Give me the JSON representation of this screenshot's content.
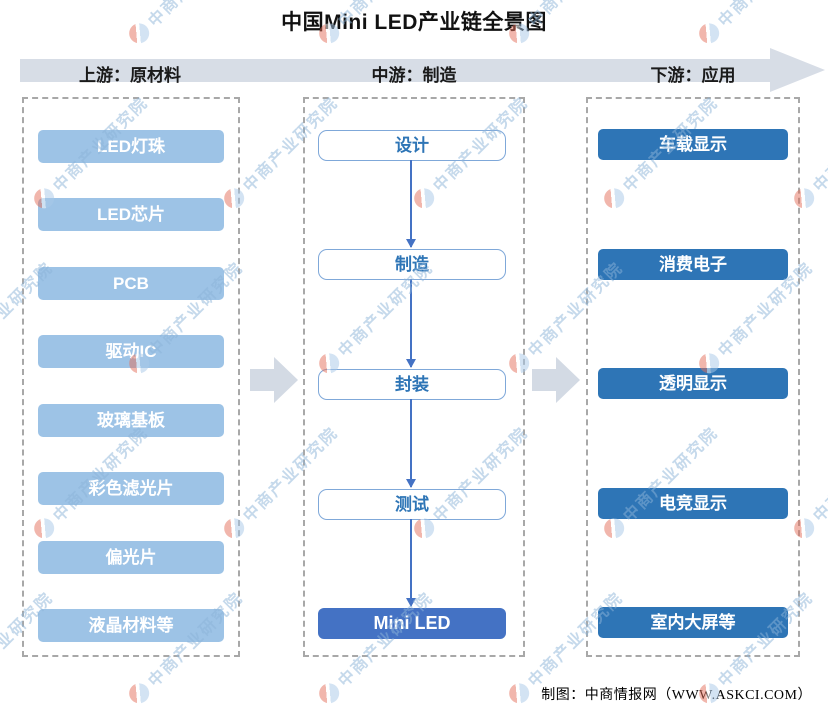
{
  "title": "中国Mini LED产业链全景图",
  "watermark": {
    "text": "中商产业研究院"
  },
  "stage_header": {
    "upstream": "上游：原材料",
    "midstream": "中游：制造",
    "downstream": "下游：应用"
  },
  "upstream": {
    "items": [
      "LED灯珠",
      "LED芯片",
      "PCB",
      "驱动IC",
      "玻璃基板",
      "彩色滤光片",
      "偏光片",
      "液晶材料等"
    ]
  },
  "midstream": {
    "steps": [
      "设计",
      "制造",
      "封装",
      "测试"
    ],
    "final_product": "Mini LED"
  },
  "downstream": {
    "items": [
      "车载显示",
      "消费电子",
      "透明显示",
      "电竞显示",
      "室内大屏等"
    ]
  },
  "footer": {
    "credit": "制图：中商情报网（WWW.ASKCI.COM）"
  },
  "colors": {
    "upstream_box": "#9DC3E6",
    "downstream_box": "#2E75B6",
    "final_box": "#4472C4",
    "band": "#D7DDE6",
    "connector_arrow": "#4472C4",
    "watermark_text": "#8DB4D9"
  }
}
